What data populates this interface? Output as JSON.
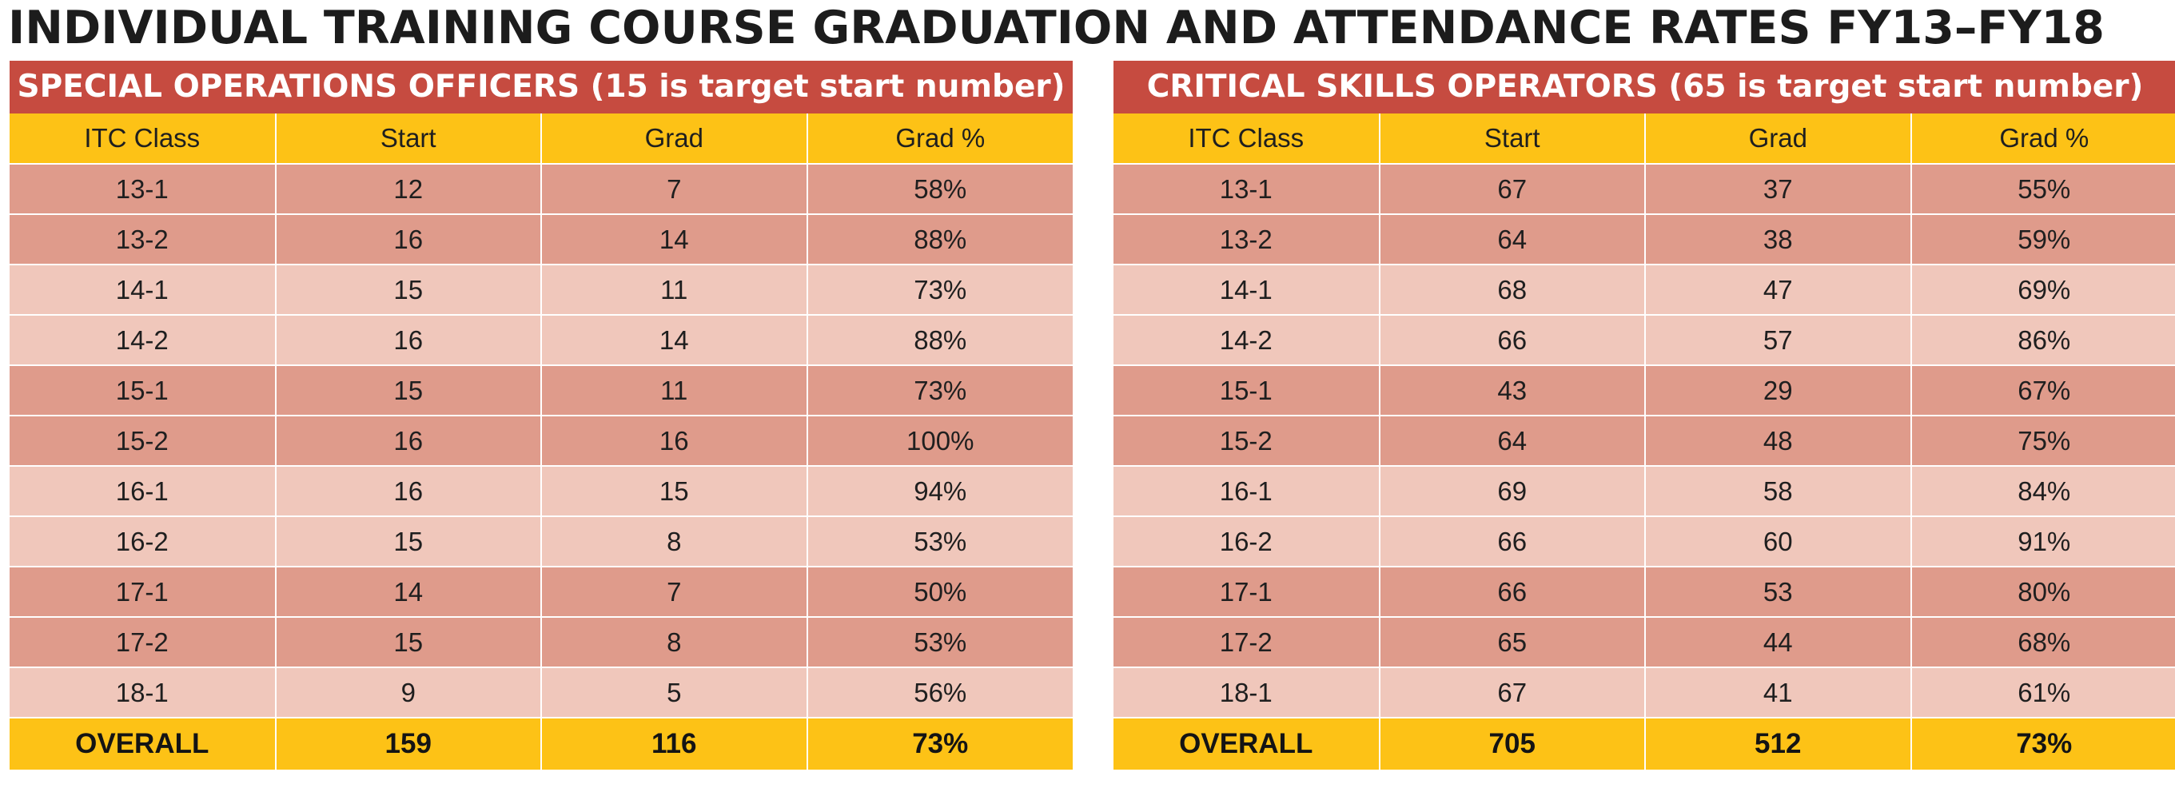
{
  "title": "INDIVIDUAL TRAINING COURSE GRADUATION AND ATTENDANCE RATES FY13–FY18",
  "colors": {
    "header_red": "#c64b40",
    "header_yellow": "#fdc216",
    "row_dark": "#df9b8b",
    "row_light": "#f0c7bb"
  },
  "chart_data": [
    {
      "type": "table",
      "title": "SPECIAL OPERATIONS OFFICERS (15 is target start number)",
      "columns": [
        "ITC Class",
        "Start",
        "Grad",
        "Grad %"
      ],
      "rows": [
        {
          "class": "13-1",
          "start": "12",
          "grad": "7",
          "pct": "58%",
          "shade": "dark"
        },
        {
          "class": "13-2",
          "start": "16",
          "grad": "14",
          "pct": "88%",
          "shade": "dark"
        },
        {
          "class": "14-1",
          "start": "15",
          "grad": "11",
          "pct": "73%",
          "shade": "light"
        },
        {
          "class": "14-2",
          "start": "16",
          "grad": "14",
          "pct": "88%",
          "shade": "light"
        },
        {
          "class": "15-1",
          "start": "15",
          "grad": "11",
          "pct": "73%",
          "shade": "dark"
        },
        {
          "class": "15-2",
          "start": "16",
          "grad": "16",
          "pct": "100%",
          "shade": "dark"
        },
        {
          "class": "16-1",
          "start": "16",
          "grad": "15",
          "pct": "94%",
          "shade": "light"
        },
        {
          "class": "16-2",
          "start": "15",
          "grad": "8",
          "pct": "53%",
          "shade": "light"
        },
        {
          "class": "17-1",
          "start": "14",
          "grad": "7",
          "pct": "50%",
          "shade": "dark"
        },
        {
          "class": "17-2",
          "start": "15",
          "grad": "8",
          "pct": "53%",
          "shade": "dark"
        },
        {
          "class": "18-1",
          "start": "9",
          "grad": "5",
          "pct": "56%",
          "shade": "light"
        }
      ],
      "overall": {
        "label": "OVERALL",
        "start": "159",
        "grad": "116",
        "pct": "73%"
      }
    },
    {
      "type": "table",
      "title": "CRITICAL SKILLS OPERATORS (65 is target start number)",
      "columns": [
        "ITC Class",
        "Start",
        "Grad",
        "Grad %"
      ],
      "rows": [
        {
          "class": "13-1",
          "start": "67",
          "grad": "37",
          "pct": "55%",
          "shade": "dark"
        },
        {
          "class": "13-2",
          "start": "64",
          "grad": "38",
          "pct": "59%",
          "shade": "dark"
        },
        {
          "class": "14-1",
          "start": "68",
          "grad": "47",
          "pct": "69%",
          "shade": "light"
        },
        {
          "class": "14-2",
          "start": "66",
          "grad": "57",
          "pct": "86%",
          "shade": "light"
        },
        {
          "class": "15-1",
          "start": "43",
          "grad": "29",
          "pct": "67%",
          "shade": "dark"
        },
        {
          "class": "15-2",
          "start": "64",
          "grad": "48",
          "pct": "75%",
          "shade": "dark"
        },
        {
          "class": "16-1",
          "start": "69",
          "grad": "58",
          "pct": "84%",
          "shade": "light"
        },
        {
          "class": "16-2",
          "start": "66",
          "grad": "60",
          "pct": "91%",
          "shade": "light"
        },
        {
          "class": "17-1",
          "start": "66",
          "grad": "53",
          "pct": "80%",
          "shade": "dark"
        },
        {
          "class": "17-2",
          "start": "65",
          "grad": "44",
          "pct": "68%",
          "shade": "dark"
        },
        {
          "class": "18-1",
          "start": "67",
          "grad": "41",
          "pct": "61%",
          "shade": "light"
        }
      ],
      "overall": {
        "label": "OVERALL",
        "start": "705",
        "grad": "512",
        "pct": "73%"
      }
    }
  ]
}
